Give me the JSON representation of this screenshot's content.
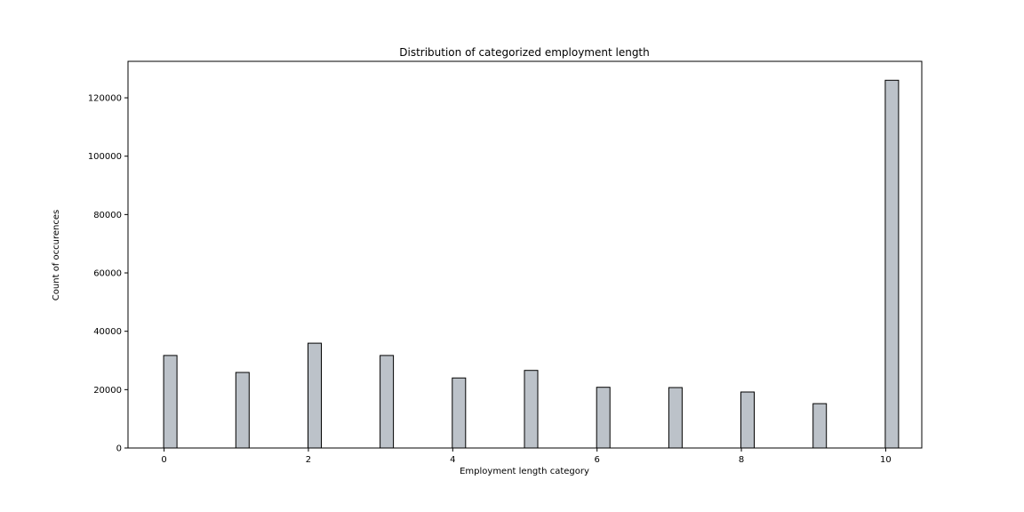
{
  "chart_data": {
    "type": "bar",
    "title": "Distribution of categorized employment length",
    "xlabel": "Employment length category",
    "ylabel": "Count of occurences",
    "x": [
      0,
      1,
      2,
      3,
      4,
      5,
      6,
      7,
      8,
      9,
      10
    ],
    "values": [
      31700,
      25900,
      35900,
      31700,
      24000,
      26600,
      20800,
      20700,
      19200,
      15200,
      126000
    ],
    "xlim": [
      -0.5,
      10.5
    ],
    "ylim": [
      0,
      132500
    ],
    "xticks": [
      0,
      2,
      4,
      6,
      8,
      10
    ],
    "yticks": [
      0,
      20000,
      40000,
      60000,
      80000,
      100000,
      120000
    ],
    "grid": false,
    "colors": {
      "bar_fill": "#bcc2c9",
      "bar_edge": "#000000",
      "axes": "#000000"
    }
  }
}
